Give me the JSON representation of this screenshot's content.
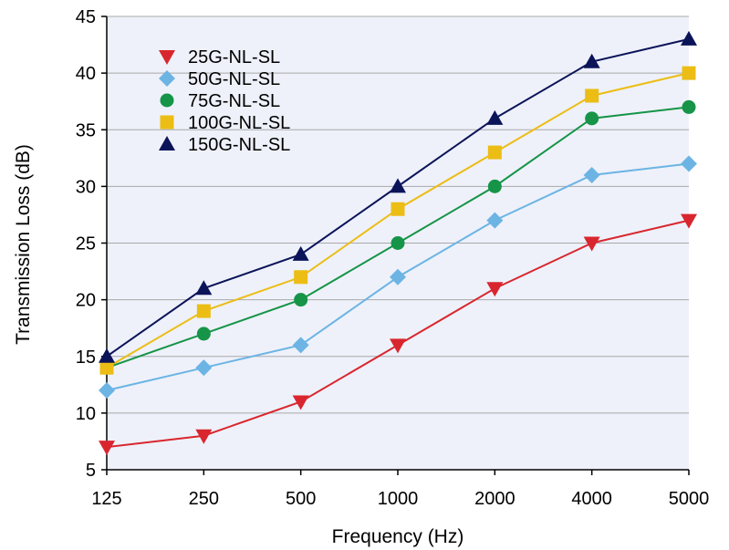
{
  "chart_data": {
    "type": "line",
    "title": "",
    "xlabel": "Frequency (Hz)",
    "ylabel": "Transmission Loss (dB)",
    "categories": [
      "125",
      "250",
      "500",
      "1000",
      "2000",
      "4000",
      "5000"
    ],
    "ylim": [
      5,
      45
    ],
    "yticks": [
      "5",
      "10",
      "15",
      "20",
      "25",
      "30",
      "35",
      "40",
      "45"
    ],
    "grid": "horizontal",
    "legend_position": "top-left",
    "plot_background": "#eef1fa",
    "series": [
      {
        "name": "25G-NL-SL",
        "color": "#d9262e",
        "marker": "triangle-down",
        "values": [
          7,
          8,
          11,
          16,
          21,
          25,
          27
        ]
      },
      {
        "name": "50G-NL-SL",
        "color": "#6cb4e4",
        "marker": "diamond",
        "values": [
          12,
          14,
          16,
          22,
          27,
          31,
          32
        ]
      },
      {
        "name": "75G-NL-SL",
        "color": "#169447",
        "marker": "circle",
        "values": [
          14,
          17,
          20,
          25,
          30,
          36,
          37
        ]
      },
      {
        "name": "100G-NL-SL",
        "color": "#ecbd14",
        "marker": "square",
        "values": [
          14,
          19,
          22,
          28,
          33,
          38,
          40
        ]
      },
      {
        "name": "150G-NL-SL",
        "color": "#0b1459",
        "marker": "triangle-up",
        "values": [
          15,
          21,
          24,
          30,
          36,
          41,
          43
        ]
      }
    ]
  }
}
